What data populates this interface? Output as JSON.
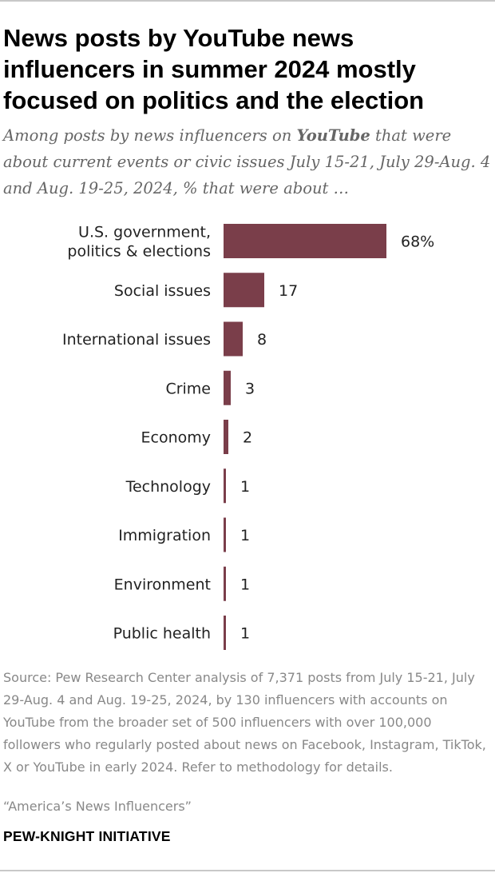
{
  "title": "News posts by YouTube news influencers in summer 2024 mostly focused on politics and the election",
  "subtitle": {
    "before": "Among posts by news influencers on ",
    "emphasis": "YouTube",
    "after": " that were about current events or civic issues July 15-21, July 29-Aug. 4 and Aug. 19-25, 2024, % that were about …"
  },
  "chart_data": {
    "type": "bar",
    "orientation": "horizontal",
    "categories": [
      [
        "U.S. government,",
        "politics & elections"
      ],
      [
        "Social issues"
      ],
      [
        "International issues"
      ],
      [
        "Crime"
      ],
      [
        "Economy"
      ],
      [
        "Technology"
      ],
      [
        "Immigration"
      ],
      [
        "Environment"
      ],
      [
        "Public health"
      ]
    ],
    "values": [
      68,
      17,
      8,
      3,
      2,
      1,
      1,
      1,
      1
    ],
    "value_labels": [
      "68%",
      "17",
      "8",
      "3",
      "2",
      "1",
      "1",
      "1",
      "1"
    ],
    "xlim": [
      0,
      100
    ],
    "bar_color": "#7a3e4a",
    "legend": "none",
    "grid": false
  },
  "source": "Source: Pew Research Center analysis of 7,371 posts from July 15-21, July 29-Aug. 4 and Aug. 19-25, 2024, by 130 influencers with accounts on YouTube from the broader set of 500 influencers with over 100,000 followers who regularly posted about news on Facebook, Instagram, TikTok, X or YouTube in early 2024. Refer to methodology for details.",
  "report_title": "“America’s News Influencers”",
  "brand": "PEW-KNIGHT INITIATIVE"
}
